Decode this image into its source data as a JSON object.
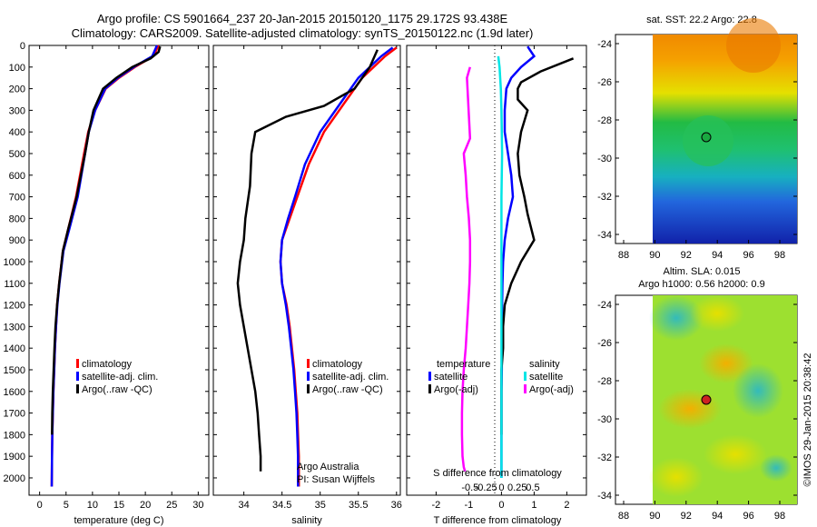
{
  "titles": {
    "line1": "Argo profile: CS 5901664_237 20-Jan-2015 20150120_1175 29.172S 93.438E",
    "line2": "Climatology: CARS2009. Satellite-adjusted climatology: synTS_20150122.nc (1.9d later)"
  },
  "depth_axis": {
    "ticks": [
      0,
      100,
      200,
      300,
      400,
      500,
      600,
      700,
      800,
      900,
      1000,
      1100,
      1200,
      1300,
      1400,
      1500,
      1600,
      1700,
      1800,
      1900,
      2000
    ],
    "range": [
      0,
      2080
    ]
  },
  "temperature_panel": {
    "xlabel": "temperature (deg C)",
    "xticks": [
      0,
      5,
      10,
      15,
      20,
      25,
      30
    ],
    "xrange": [
      -2,
      32
    ],
    "legend": [
      "climatology",
      "satellite-adj. clim.",
      "Argo(..raw -QC)"
    ]
  },
  "salinity_panel": {
    "xlabel": "salinity",
    "xticks": [
      34,
      34.5,
      35,
      35.5,
      36
    ],
    "xtick_labels": [
      "34",
      "34.5",
      "35",
      "35.5",
      "36"
    ],
    "xrange": [
      33.6,
      36.05
    ],
    "legend": [
      "climatology",
      "satellite-adj. clim.",
      "Argo(..raw -QC)"
    ],
    "note1": "Argo Australia",
    "note2": "PI: Susan Wijffels"
  },
  "difference_panel": {
    "top_label": "S difference from climatology",
    "top_ticks": [
      "-0.5",
      "-0.25",
      "0",
      "0.25",
      "0.5"
    ],
    "top_tick_values": [
      -0.5,
      -0.25,
      0,
      0.25,
      0.5
    ],
    "xlabel": "T difference from climatology",
    "xticks": [
      -2,
      -1,
      0,
      1,
      2
    ],
    "xtick_labels": [
      "-2",
      "-1",
      "0",
      "1",
      "2"
    ],
    "xrange": [
      -2.9,
      2.6
    ],
    "legend_temp_header": "temperature",
    "legend_sal_header": "salinity",
    "legend_temp_items": [
      "satellite",
      "Argo(-adj)"
    ],
    "legend_sal_items": [
      "satellite",
      "Argo(-adj)"
    ]
  },
  "map_sst": {
    "title": "sat. SST: 22.2  Argo: 22.8",
    "yticks": [
      -24,
      -26,
      -28,
      -30,
      -32,
      -34
    ],
    "xticks": [
      88,
      90,
      92,
      94,
      96,
      98
    ],
    "profile_lon": 93.438,
    "profile_lat": -29.172
  },
  "map_sla": {
    "title1": "Altim. SLA: 0.015",
    "title2": "Argo h1000: 0.56 h2000: 0.9",
    "yticks": [
      -24,
      -26,
      -28,
      -30,
      -32,
      -34
    ],
    "xticks": [
      88,
      90,
      92,
      94,
      96,
      98
    ],
    "profile_lon": 93.438,
    "profile_lat": -29.172
  },
  "credit": "©IMOS 29-Jan-2015 20:38:42",
  "colors": {
    "climatology": "#ff0000",
    "satellite": "#0000ff",
    "argo": "#000000",
    "sal_satellite": "#00e5e5",
    "sal_argo": "#ff00ff"
  },
  "chart_data": [
    {
      "type": "line",
      "name": "temperature",
      "series": [
        {
          "name": "climatology",
          "x": [
            22.5,
            21.5,
            18,
            15,
            12.5,
            10.5,
            9.2,
            8.4,
            6.9,
            5.4,
            4.4,
            3.7,
            3.3,
            3.1,
            2.9,
            2.75,
            2.6,
            2.5,
            2.4,
            2.35,
            2.3
          ],
          "y": [
            0,
            50,
            100,
            150,
            200,
            300,
            400,
            500,
            700,
            850,
            950,
            1100,
            1200,
            1300,
            1400,
            1500,
            1600,
            1700,
            1800,
            1900,
            2040
          ]
        },
        {
          "name": "satellite-adj. clim.",
          "x": [
            22.2,
            21.3,
            17.8,
            14.8,
            12.4,
            10.5,
            9.3,
            8.6,
            7.2,
            5.6,
            4.5,
            3.75,
            3.35,
            3.1,
            2.9,
            2.75,
            2.6,
            2.5,
            2.4,
            2.35,
            2.3
          ],
          "y": [
            0,
            50,
            100,
            150,
            200,
            300,
            400,
            500,
            700,
            850,
            950,
            1100,
            1200,
            1300,
            1400,
            1500,
            1600,
            1700,
            1800,
            1900,
            2040
          ]
        },
        {
          "name": "Argo(..raw -QC)",
          "x": [
            22.8,
            22.5,
            21,
            17.5,
            14.5,
            12,
            10.2,
            9.3,
            8.6,
            7.0,
            5.4,
            4.4,
            3.7,
            3.3,
            3.0,
            2.8,
            2.65,
            2.5,
            2.4,
            2.35
          ],
          "y": [
            5,
            30,
            60,
            100,
            150,
            200,
            300,
            400,
            500,
            700,
            850,
            950,
            1100,
            1200,
            1300,
            1400,
            1500,
            1600,
            1700,
            1800
          ]
        }
      ]
    },
    {
      "type": "line",
      "name": "salinity",
      "series": [
        {
          "name": "climatology",
          "x": [
            36.0,
            35.85,
            35.55,
            35.35,
            35.05,
            34.85,
            34.7,
            34.6,
            34.5,
            34.48,
            34.5,
            34.56,
            34.6,
            34.63,
            34.66,
            34.68,
            34.7,
            34.71,
            34.72,
            34.72
          ],
          "y": [
            10,
            50,
            150,
            250,
            400,
            550,
            700,
            800,
            900,
            1000,
            1100,
            1200,
            1300,
            1400,
            1500,
            1600,
            1700,
            1800,
            1900,
            2040
          ]
        },
        {
          "name": "satellite-adj. clim.",
          "x": [
            35.95,
            35.8,
            35.5,
            35.3,
            35.0,
            34.8,
            34.67,
            34.58,
            34.5,
            34.48,
            34.5,
            34.55,
            34.59,
            34.62,
            34.65,
            34.67,
            34.69,
            34.7,
            34.71,
            34.71
          ],
          "y": [
            10,
            50,
            150,
            250,
            400,
            550,
            700,
            800,
            900,
            1000,
            1100,
            1200,
            1300,
            1400,
            1500,
            1600,
            1700,
            1800,
            1900,
            2040
          ]
        },
        {
          "name": "Argo(..raw -QC)",
          "x": [
            35.75,
            35.65,
            35.45,
            35.05,
            34.55,
            34.15,
            34.1,
            34.08,
            34.02,
            34.0,
            33.95,
            33.92,
            33.95,
            34.0,
            34.05,
            34.1,
            34.15,
            34.18,
            34.2,
            34.22,
            34.22
          ],
          "y": [
            20,
            100,
            200,
            280,
            330,
            400,
            500,
            650,
            800,
            900,
            1000,
            1100,
            1200,
            1300,
            1400,
            1500,
            1600,
            1700,
            1800,
            1900,
            1970
          ]
        }
      ]
    },
    {
      "type": "line",
      "name": "differences",
      "series": [
        {
          "name": "temperature satellite",
          "x": [
            0.8,
            1.0,
            0.6,
            0.3,
            0.15,
            0.1,
            0.1,
            0.2,
            0.3,
            0.35,
            0.2,
            0.1,
            0.05,
            0.03,
            0.02,
            0.02,
            0.01,
            0.01,
            0,
            0,
            0
          ],
          "y": [
            5,
            50,
            100,
            150,
            200,
            300,
            400,
            500,
            600,
            700,
            800,
            900,
            1000,
            1100,
            1200,
            1300,
            1400,
            1500,
            1600,
            1800,
            2000
          ]
        },
        {
          "name": "temperature Argo(-adj)",
          "x": [
            2.2,
            1.2,
            0.6,
            0.5,
            0.5,
            0.8,
            0.6,
            0.5,
            0.55,
            0.7,
            0.8,
            1.0,
            0.6,
            0.3,
            0.1,
            0.05,
            0.05,
            0,
            0,
            0
          ],
          "y": [
            60,
            120,
            170,
            200,
            250,
            300,
            400,
            500,
            600,
            700,
            780,
            900,
            1000,
            1100,
            1200,
            1300,
            1400,
            1500,
            1600,
            1800
          ]
        },
        {
          "name": "salinity satellite",
          "x": [
            -0.05,
            -0.03,
            -0.02,
            -0.01,
            0,
            0.01,
            0,
            0,
            0,
            0,
            0,
            0,
            0,
            0
          ],
          "y": [
            50,
            100,
            150,
            200,
            300,
            500,
            700,
            900,
            1100,
            1300,
            1500,
            1700,
            1900,
            2000
          ]
        },
        {
          "name": "salinity Argo(-adj)",
          "x": [
            -0.5,
            -0.55,
            -0.5,
            -0.6,
            -0.57,
            -0.55,
            -0.52,
            -0.5,
            -0.5,
            -0.51,
            -0.53,
            -0.55,
            -0.57,
            -0.6,
            -0.62,
            -0.63,
            -0.63,
            -0.62,
            -0.6,
            -0.58
          ],
          "y": [
            100,
            150,
            430,
            500,
            600,
            700,
            800,
            900,
            1000,
            1100,
            1200,
            1300,
            1400,
            1500,
            1600,
            1700,
            1800,
            1900,
            1950,
            1970
          ]
        }
      ]
    }
  ]
}
